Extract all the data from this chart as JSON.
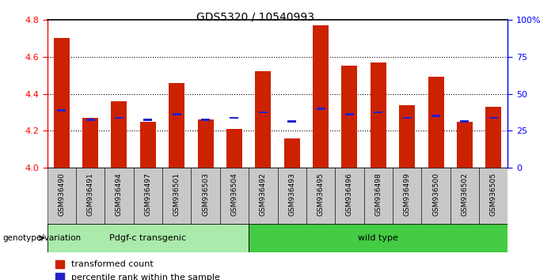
{
  "title": "GDS5320 / 10540993",
  "samples": [
    "GSM936490",
    "GSM936491",
    "GSM936494",
    "GSM936497",
    "GSM936501",
    "GSM936503",
    "GSM936504",
    "GSM936492",
    "GSM936493",
    "GSM936495",
    "GSM936496",
    "GSM936498",
    "GSM936499",
    "GSM936500",
    "GSM936502",
    "GSM936505"
  ],
  "red_values": [
    4.7,
    4.27,
    4.36,
    4.25,
    4.46,
    4.26,
    4.21,
    4.52,
    4.16,
    4.77,
    4.55,
    4.57,
    4.34,
    4.49,
    4.25,
    4.33
  ],
  "blue_values": [
    4.31,
    4.26,
    4.27,
    4.26,
    4.29,
    4.26,
    4.27,
    4.3,
    4.25,
    4.32,
    4.29,
    4.3,
    4.27,
    4.28,
    4.25,
    4.27
  ],
  "group1_label": "Pdgf-c transgenic",
  "group2_label": "wild type",
  "group1_count": 7,
  "group2_count": 9,
  "ymin": 4.0,
  "ymax": 4.8,
  "yticks": [
    4.0,
    4.2,
    4.4,
    4.6,
    4.8
  ],
  "y2ticks": [
    0,
    25,
    50,
    75,
    100
  ],
  "y2labels": [
    "0",
    "25",
    "50",
    "75",
    "100%"
  ],
  "bar_color": "#cc2200",
  "blue_color": "#2222cc",
  "group1_bg": "#aaeaaa",
  "group2_bg": "#44cc44",
  "plot_bg": "#ffffff",
  "xtick_bg": "#c8c8c8",
  "legend_red": "transformed count",
  "legend_blue": "percentile rank within the sample",
  "bar_width": 0.55,
  "genotype_label": "genotype/variation"
}
